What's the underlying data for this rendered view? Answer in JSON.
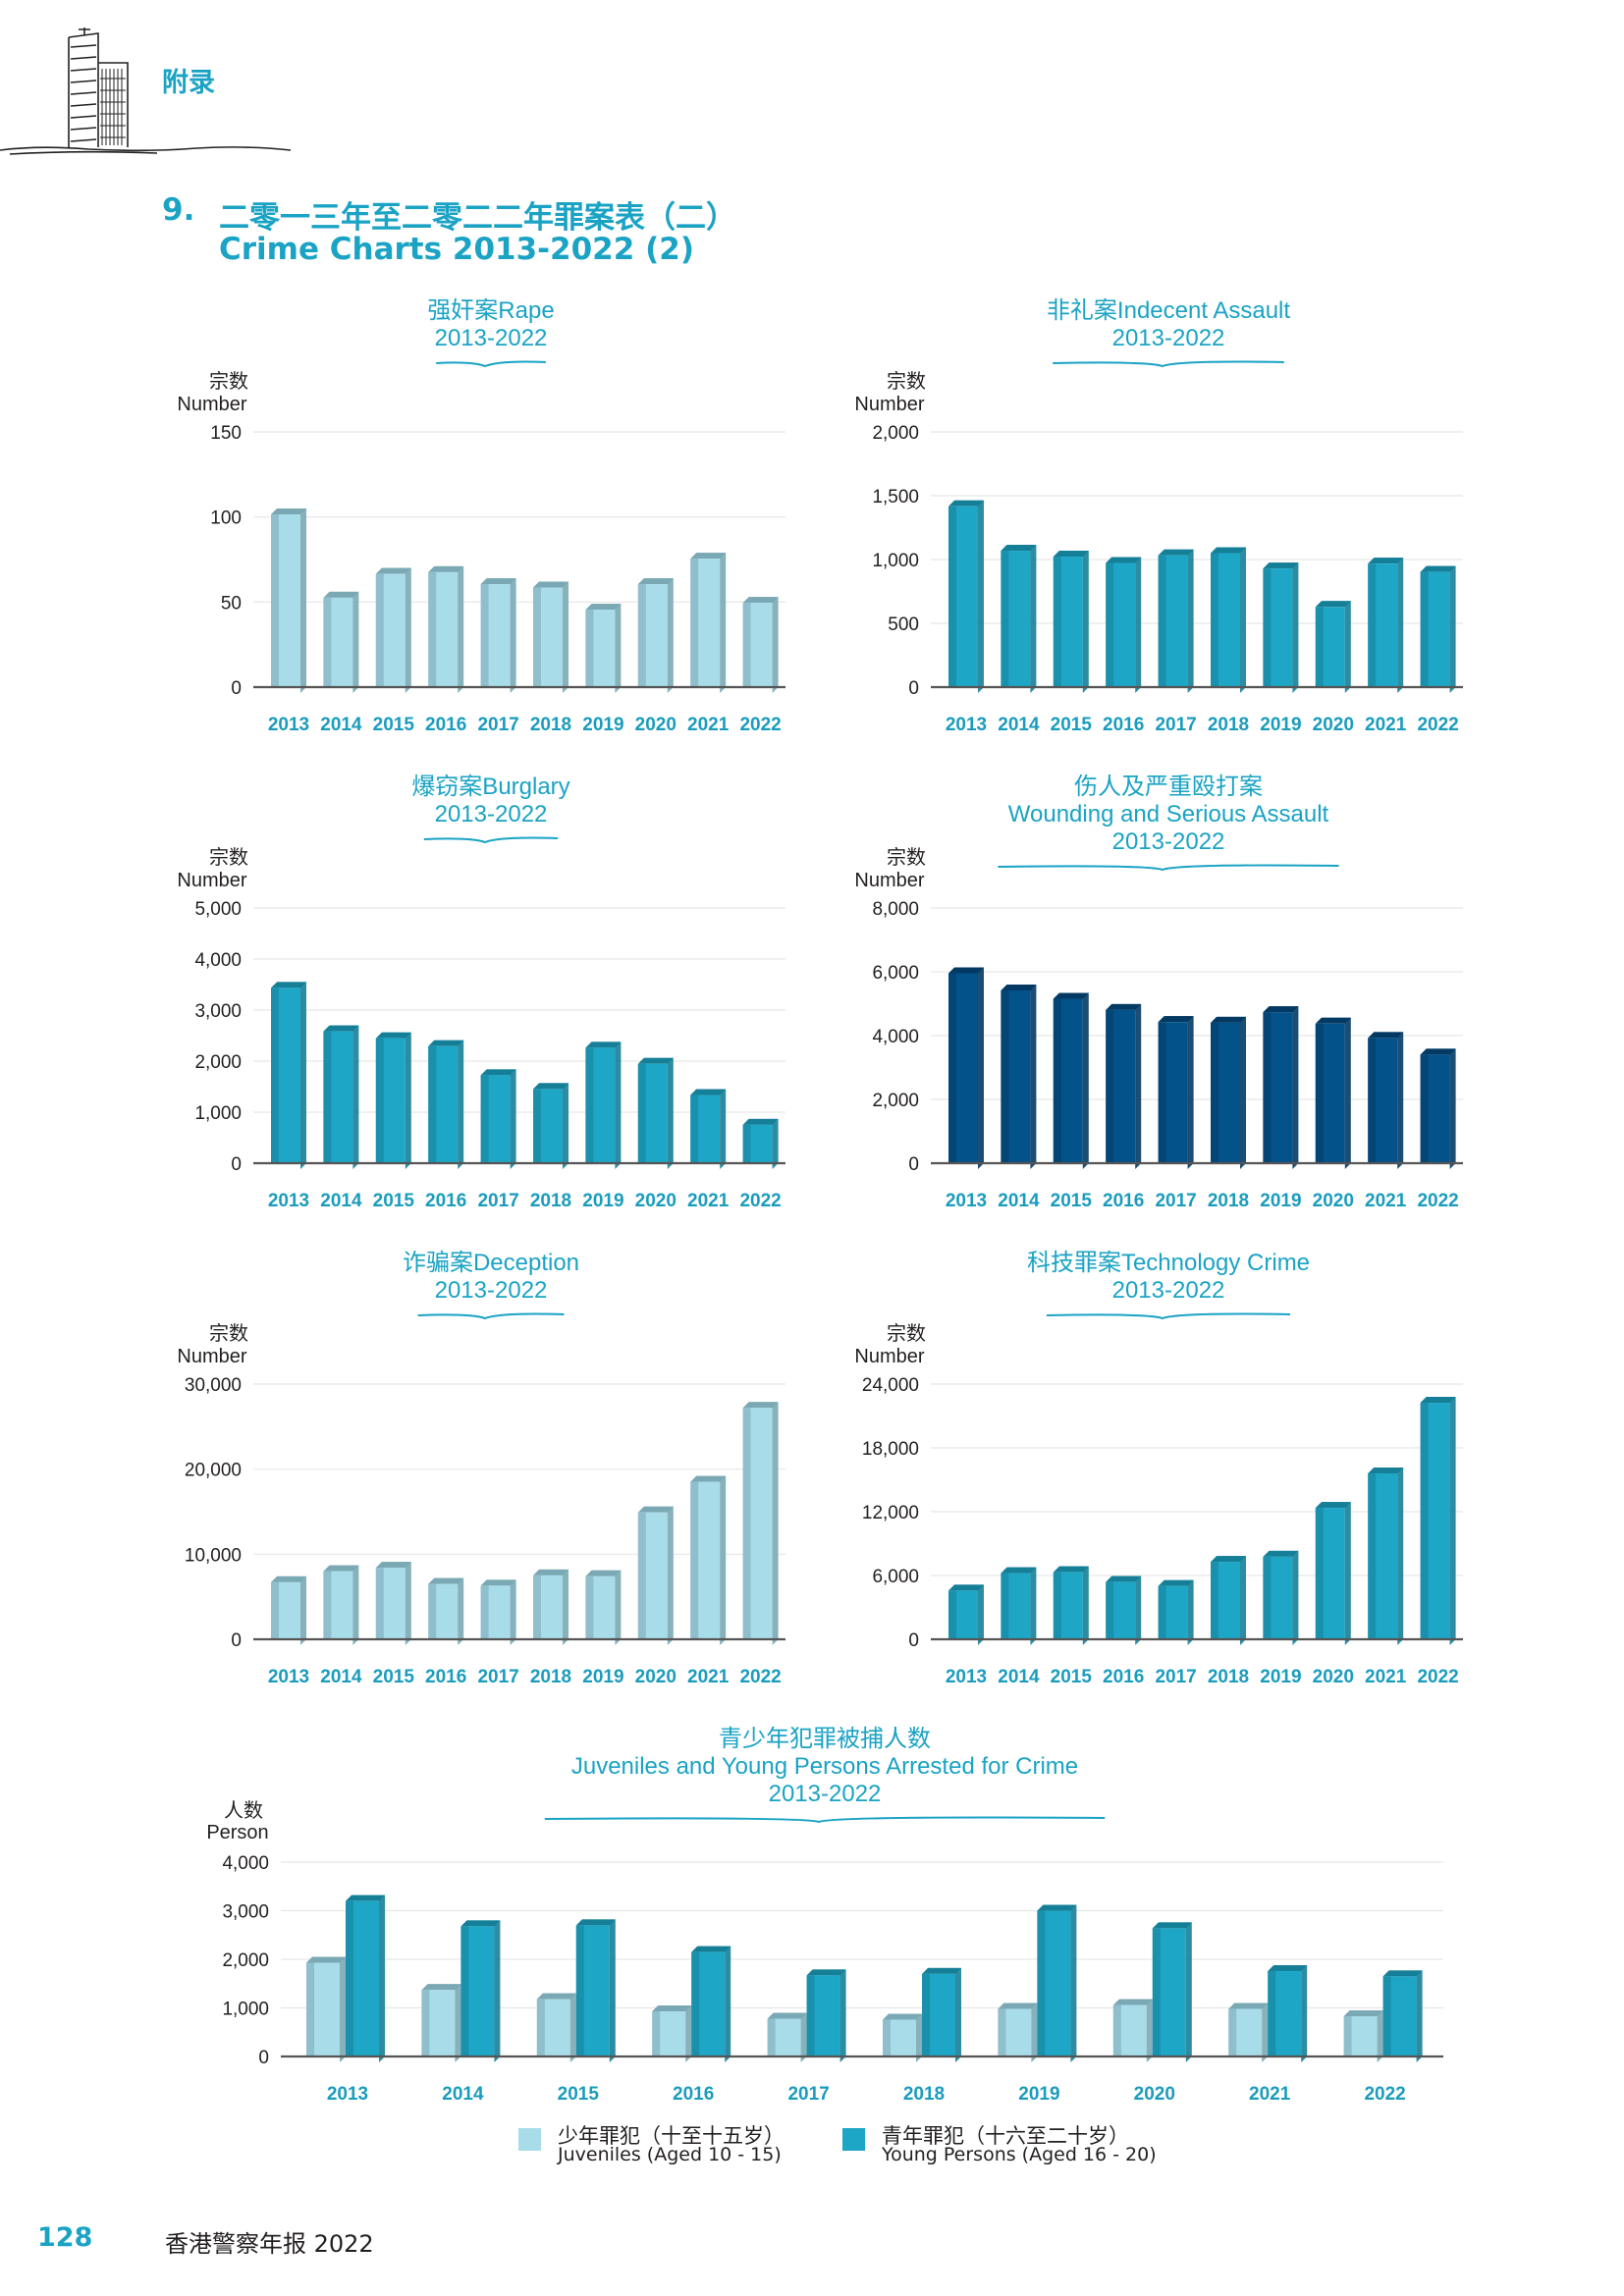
{
  "header": {
    "section": "附录"
  },
  "heading": {
    "number": "9.",
    "title_zh": "二零一三年至二零二二年罪案表（二）",
    "title_en": "Crime Charts 2013-2022 (2)"
  },
  "colors": {
    "light": "#a8dce9",
    "light_side": "#7aa8b4",
    "teal": "#1ea6c6",
    "teal_side": "#167f98",
    "navy": "#04528a",
    "navy_side": "#033a63",
    "axis": "#555555",
    "grid": "#e6e6e6",
    "accent": "#1aa3c4"
  },
  "chart_data": [
    {
      "id": "rape",
      "type": "bar",
      "color": "light",
      "title": [
        "强奸案Rape",
        "2013-2022"
      ],
      "ylabel": [
        "宗数",
        "Number"
      ],
      "categories": [
        "2013",
        "2014",
        "2015",
        "2016",
        "2017",
        "2018",
        "2019",
        "2020",
        "2021",
        "2022"
      ],
      "values": [
        105,
        56,
        70,
        71,
        64,
        62,
        49,
        64,
        79,
        53
      ],
      "ylim": [
        0,
        150
      ],
      "yticks": [
        0,
        50,
        100,
        150
      ],
      "yticklabels": [
        "0",
        "50",
        "100",
        "150"
      ]
    },
    {
      "id": "indecent-assault",
      "type": "bar",
      "color": "teal",
      "title": [
        "非礼案Indecent Assault",
        "2013-2022"
      ],
      "ylabel": [
        "宗数",
        "Number"
      ],
      "categories": [
        "2013",
        "2014",
        "2015",
        "2016",
        "2017",
        "2018",
        "2019",
        "2020",
        "2021",
        "2022"
      ],
      "values": [
        1463,
        1115,
        1069,
        1019,
        1079,
        1096,
        976,
        675,
        1014,
        949
      ],
      "ylim": [
        0,
        2000
      ],
      "yticks": [
        0,
        500,
        1000,
        1500,
        2000
      ],
      "yticklabels": [
        "0",
        "500",
        "1,000",
        "1,500",
        "2,000"
      ]
    },
    {
      "id": "burglary",
      "type": "bar",
      "color": "teal",
      "title": [
        "爆窃案Burglary",
        "2013-2022"
      ],
      "ylabel": [
        "宗数",
        "Number"
      ],
      "categories": [
        "2013",
        "2014",
        "2015",
        "2016",
        "2017",
        "2018",
        "2019",
        "2020",
        "2021",
        "2022"
      ],
      "values": [
        3551,
        2700,
        2563,
        2408,
        1840,
        1569,
        2377,
        2063,
        1451,
        868
      ],
      "ylim": [
        0,
        5000
      ],
      "yticks": [
        0,
        1000,
        2000,
        3000,
        4000,
        5000
      ],
      "yticklabels": [
        "0",
        "1,000",
        "2,000",
        "3,000",
        "4,000",
        "5,000"
      ]
    },
    {
      "id": "wounding",
      "type": "bar",
      "color": "navy",
      "title": [
        "伤人及严重殴打案",
        "Wounding and Serious Assault",
        "2013-2022"
      ],
      "ylabel": [
        "宗数",
        "Number"
      ],
      "categories": [
        "2013",
        "2014",
        "2015",
        "2016",
        "2017",
        "2018",
        "2019",
        "2020",
        "2021",
        "2022"
      ],
      "values": [
        6140,
        5600,
        5340,
        4990,
        4610,
        4590,
        4920,
        4560,
        4110,
        3590
      ],
      "ylim": [
        0,
        8000
      ],
      "yticks": [
        0,
        2000,
        4000,
        6000,
        8000
      ],
      "yticklabels": [
        "0",
        "2,000",
        "4,000",
        "6,000",
        "8,000"
      ]
    },
    {
      "id": "deception",
      "type": "bar",
      "color": "light",
      "title": [
        "诈骗案Deception",
        "2013-2022"
      ],
      "ylabel": [
        "宗数",
        "Number"
      ],
      "categories": [
        "2013",
        "2014",
        "2015",
        "2016",
        "2017",
        "2018",
        "2019",
        "2020",
        "2021",
        "2022"
      ],
      "values": [
        7400,
        8700,
        9100,
        7200,
        7000,
        8200,
        8100,
        15600,
        19200,
        27900
      ],
      "ylim": [
        0,
        30000
      ],
      "yticks": [
        0,
        10000,
        20000,
        30000
      ],
      "yticklabels": [
        "0",
        "10,000",
        "20,000",
        "30,000"
      ]
    },
    {
      "id": "technology-crime",
      "type": "bar",
      "color": "teal",
      "title": [
        "科技罪案Technology Crime",
        "2013-2022"
      ],
      "ylabel": [
        "宗数",
        "Number"
      ],
      "categories": [
        "2013",
        "2014",
        "2015",
        "2016",
        "2017",
        "2018",
        "2019",
        "2020",
        "2021",
        "2022"
      ],
      "values": [
        5133,
        6778,
        6862,
        5939,
        5567,
        7838,
        8322,
        12916,
        16159,
        22797
      ],
      "ylim": [
        0,
        24000
      ],
      "yticks": [
        0,
        6000,
        12000,
        18000,
        24000
      ],
      "yticklabels": [
        "0",
        "6,000",
        "12,000",
        "18,000",
        "24,000"
      ]
    },
    {
      "id": "juveniles",
      "type": "bar",
      "title": [
        "青少年犯罪被捕人数",
        "Juveniles and Young Persons Arrested for Crime",
        "2013-2022"
      ],
      "ylabel": [
        "人数",
        "Person"
      ],
      "categories": [
        "2013",
        "2014",
        "2015",
        "2016",
        "2017",
        "2018",
        "2019",
        "2020",
        "2021",
        "2022"
      ],
      "series": [
        {
          "name": "少年罪犯（十至十五岁）",
          "name_en": "Juveniles (Aged 10 - 15)",
          "color": "light",
          "values": [
            2050,
            1490,
            1300,
            1050,
            900,
            880,
            1100,
            1180,
            1100,
            950
          ]
        },
        {
          "name": "青年罪犯（十六至二十岁）",
          "name_en": "Young Persons (Aged 16 - 20)",
          "color": "teal",
          "values": [
            3320,
            2800,
            2820,
            2270,
            1790,
            1820,
            3120,
            2760,
            1880,
            1770
          ]
        }
      ],
      "ylim": [
        0,
        4000
      ],
      "yticks": [
        0,
        1000,
        2000,
        3000,
        4000
      ],
      "yticklabels": [
        "0",
        "1,000",
        "2,000",
        "3,000",
        "4,000"
      ]
    }
  ],
  "footer": {
    "page_number": "128",
    "publication": "香港警察年报 2022"
  }
}
